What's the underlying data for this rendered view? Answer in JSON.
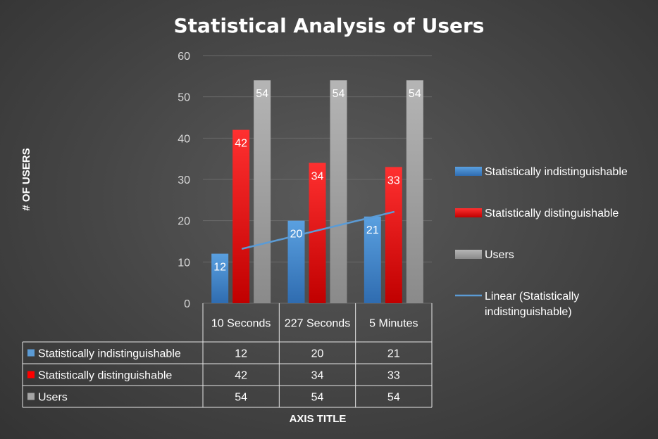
{
  "chart_data": {
    "type": "bar",
    "title": "Statistical Analysis of Users",
    "xlabel": "AXIS TITLE",
    "ylabel": "# OF USERS",
    "ylim": [
      0,
      60
    ],
    "yticks": [
      0,
      10,
      20,
      30,
      40,
      50,
      60
    ],
    "grid": true,
    "legend_position": "right",
    "data_table": true,
    "categories": [
      "10 Seconds",
      "227 Seconds",
      "5 Minutes"
    ],
    "series": [
      {
        "name": "Statistically indistinguishable",
        "values": [
          12,
          20,
          21
        ],
        "color": "#5b9bd5"
      },
      {
        "name": "Statistically distinguishable",
        "values": [
          42,
          34,
          33
        ],
        "color": "#ff0000"
      },
      {
        "name": "Users",
        "values": [
          54,
          54,
          54
        ],
        "color": "#a5a5a5"
      }
    ],
    "trendline": {
      "name": "Linear (Statistically indistinguishable)",
      "type": "linear",
      "series": "Statistically indistinguishable",
      "color": "#5b9bd5"
    }
  }
}
